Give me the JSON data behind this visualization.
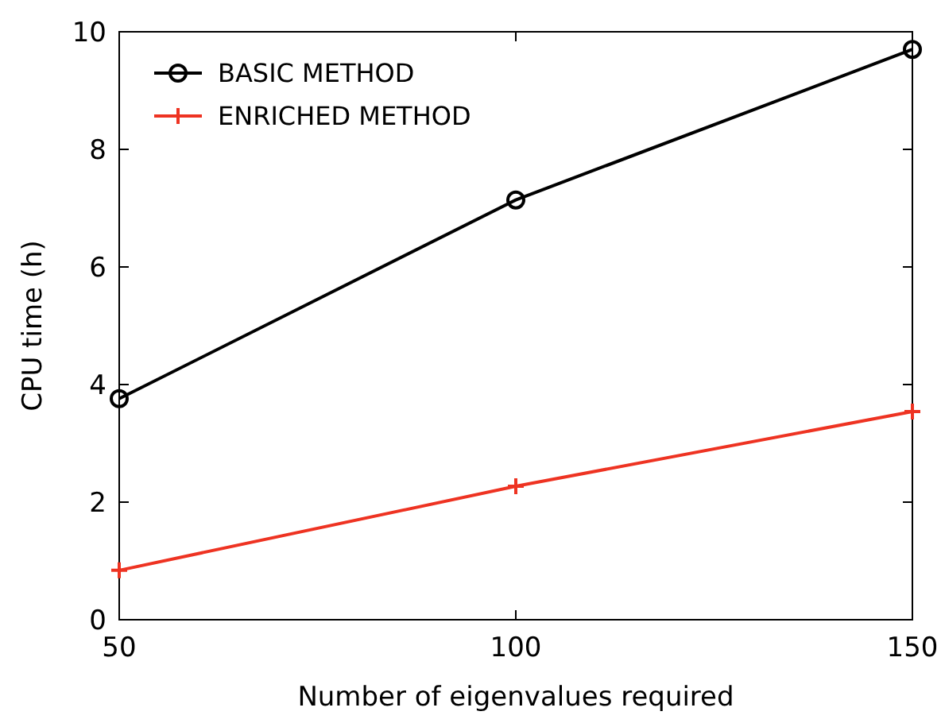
{
  "chart_data": {
    "type": "line",
    "xlabel": "Number of eigenvalues required",
    "ylabel": "CPU time (h)",
    "x": [
      50,
      100,
      150
    ],
    "xlim": [
      50,
      150
    ],
    "xticks": [
      50,
      100,
      150
    ],
    "ylim": [
      0,
      10
    ],
    "yticks": [
      0,
      2,
      4,
      6,
      8,
      10
    ],
    "legend": "top left",
    "grid": false,
    "line_style": "solid",
    "series": [
      {
        "name": "BASIC METHOD",
        "color": "#000000",
        "marker": "circle",
        "values": [
          3.76,
          7.14,
          9.7
        ]
      },
      {
        "name": "ENRICHED METHOD",
        "color": "#ee3322",
        "marker": "cross",
        "values": [
          0.84,
          2.27,
          3.54
        ]
      }
    ]
  }
}
